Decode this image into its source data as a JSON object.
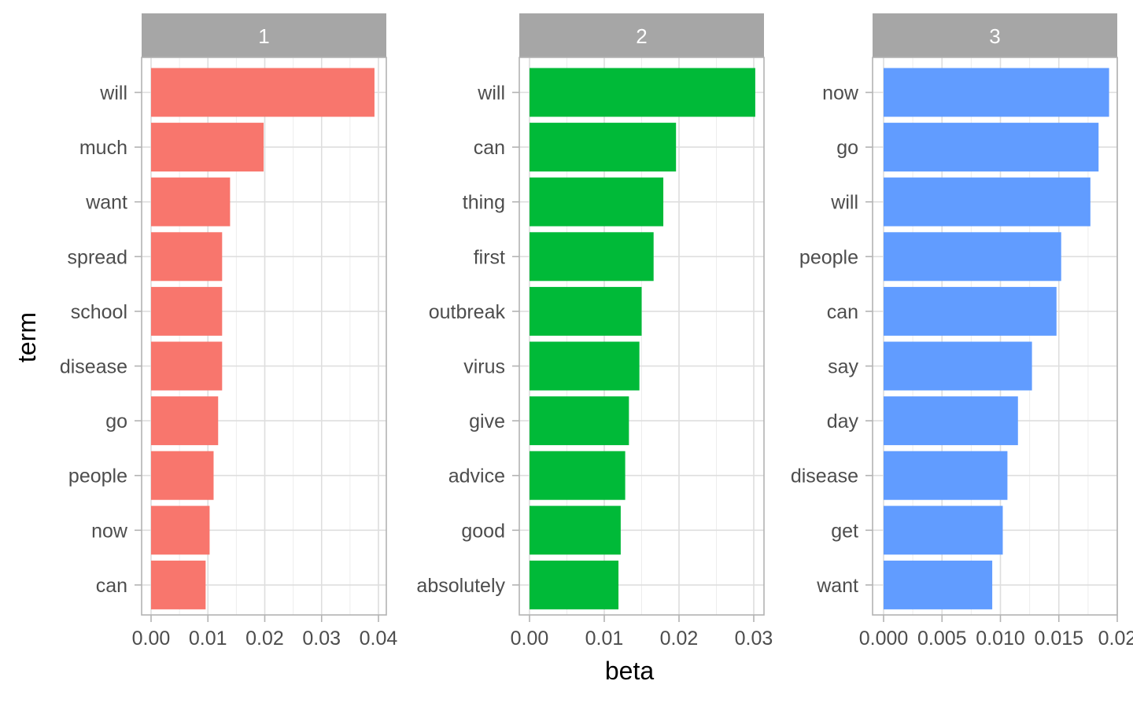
{
  "chart_data": {
    "type": "bar",
    "orientation": "horizontal",
    "xlabel": "beta",
    "ylabel": "term",
    "grid": true,
    "legend": "none",
    "panels": [
      {
        "strip": "1",
        "color": "#F8766D",
        "xlim": [
          0,
          0.04
        ],
        "ticks": [
          0,
          0.01,
          0.02,
          0.03,
          0.04
        ],
        "tick_labels": [
          "0.00",
          "0.01",
          "0.02",
          "0.03",
          "0.04"
        ],
        "categories": [
          "will",
          "much",
          "want",
          "spread",
          "school",
          "disease",
          "go",
          "people",
          "now",
          "can"
        ],
        "values": [
          0.0393,
          0.0198,
          0.0139,
          0.0125,
          0.0125,
          0.0125,
          0.0118,
          0.011,
          0.0103,
          0.0096
        ]
      },
      {
        "strip": "2",
        "color": "#00BA38",
        "xlim": [
          0,
          0.03
        ],
        "ticks": [
          0,
          0.01,
          0.02,
          0.03
        ],
        "tick_labels": [
          "0.00",
          "0.01",
          "0.02",
          "0.03"
        ],
        "categories": [
          "will",
          "can",
          "thing",
          "first",
          "outbreak",
          "virus",
          "give",
          "advice",
          "good",
          "absolutely"
        ],
        "values": [
          0.0302,
          0.0196,
          0.0179,
          0.0166,
          0.015,
          0.0147,
          0.0133,
          0.0128,
          0.0122,
          0.0119
        ]
      },
      {
        "strip": "3",
        "color": "#619CFF",
        "xlim": [
          0,
          0.02
        ],
        "ticks": [
          0,
          0.005,
          0.01,
          0.015,
          0.02
        ],
        "tick_labels": [
          "0.000",
          "0.005",
          "0.010",
          "0.015",
          "0.02"
        ],
        "categories": [
          "now",
          "go",
          "will",
          "people",
          "can",
          "say",
          "day",
          "disease",
          "get",
          "want"
        ],
        "values": [
          0.0193,
          0.0184,
          0.0177,
          0.0152,
          0.0148,
          0.0127,
          0.0115,
          0.0106,
          0.0102,
          0.0093
        ]
      }
    ]
  }
}
